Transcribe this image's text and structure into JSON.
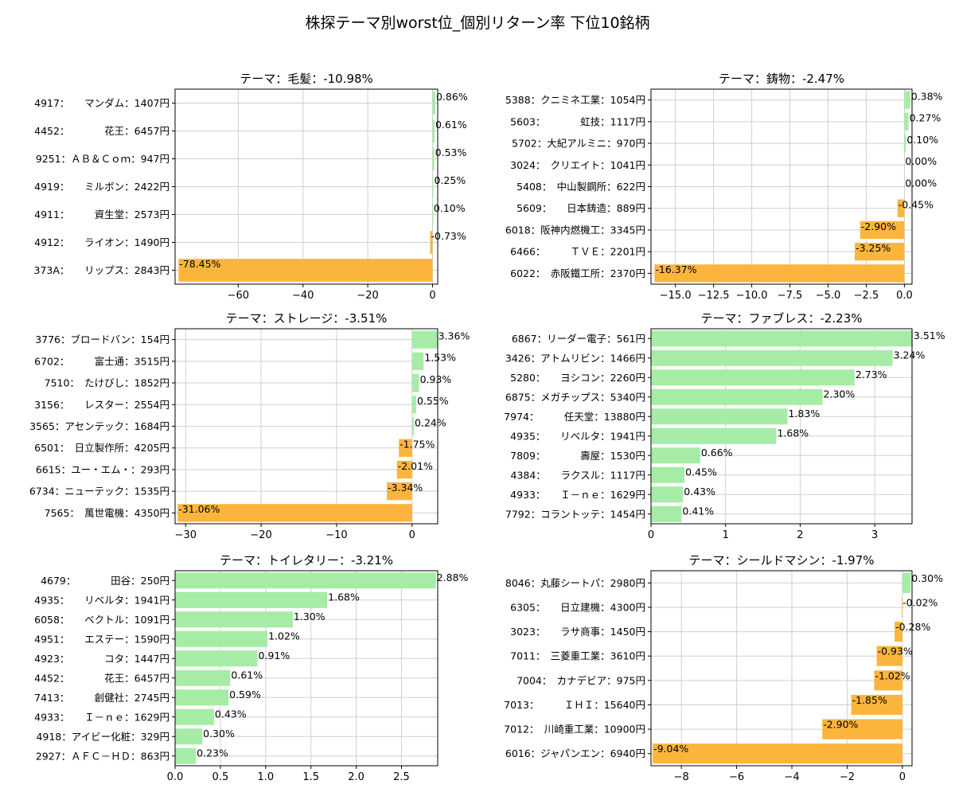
{
  "figure_title": "株探テーマ別worst位_個別リターン率 下位10銘柄",
  "colors": {
    "positive": "#a6eca6",
    "negative": "#fbb53c",
    "grid": "#cfcfcf",
    "axis": "#000000"
  },
  "chart_data": [
    {
      "type": "bar",
      "orientation": "horizontal",
      "title": "テーマ：毛髪：-10.98%",
      "categories": [
        "4917：　　マンダム：1407円",
        "4452：　　　　花王：6457円",
        "9251：ＡＢ＆Ｃｏｍ：947円",
        "4919：　　ミルボン：2422円",
        "4911：　　　資生堂：2573円",
        "4912：　　ライオン：1490円",
        "373A：　　リップス：2843円"
      ],
      "values": [
        0.86,
        0.61,
        0.53,
        0.25,
        0.1,
        -0.73,
        -78.45
      ],
      "value_labels": [
        "0.86%",
        "0.61%",
        "0.53%",
        "0.25%",
        "0.10%",
        "-0.73%",
        "-78.45%"
      ],
      "xlim": [
        -79.5,
        1.6
      ],
      "xticks": [
        -60,
        -40,
        -20,
        0
      ],
      "xtick_labels": [
        "−60",
        "−40",
        "−20",
        "0"
      ],
      "grid": true
    },
    {
      "type": "bar",
      "orientation": "horizontal",
      "title": "テーマ：鋳物：-2.47%",
      "categories": [
        "5388：クニミネ工業：1054円",
        "5603：　　　　虹技：1117円",
        "5702：大紀アルミニ：970円",
        "3024：　クリエイト：1041円",
        "5408：　中山製鋼所：622円",
        "5609：　　日本鋳造：889円",
        "6018：阪神内燃機工：3345円",
        "6466：　　　ＴＶＥ：2201円",
        "6022：　赤阪鐵工所：2370円"
      ],
      "values": [
        0.38,
        0.27,
        0.1,
        0.0,
        0.0,
        -0.45,
        -2.9,
        -3.25,
        -16.37
      ],
      "value_labels": [
        "0.38%",
        "0.27%",
        "0.10%",
        "0.00%",
        "0.00%",
        "-0.45%",
        "-2.90%",
        "-3.25%",
        "-16.37%"
      ],
      "xlim": [
        -16.6,
        0.5
      ],
      "xticks": [
        -15.0,
        -12.5,
        -10.0,
        -7.5,
        -5.0,
        -2.5,
        0.0
      ],
      "xtick_labels": [
        "−15.0",
        "−12.5",
        "−10.0",
        "−7.5",
        "−5.0",
        "−2.5",
        "0.0"
      ],
      "grid": true
    },
    {
      "type": "bar",
      "orientation": "horizontal",
      "title": "テーマ：ストレージ：-3.51%",
      "categories": [
        "3776：ブロードバン：154円",
        "6702：　　　富士通：3515円",
        "7510：　たけびし：1852円",
        "3156：　　レスター：2554円",
        "3565：アセンテック：1684円",
        "6501：　日立製作所：4205円",
        "6615：ユー・エム・：293円",
        "6734：ニューテック：1535円",
        "7565：　萬世電機：4350円"
      ],
      "values": [
        3.36,
        1.53,
        0.93,
        0.55,
        0.24,
        -1.75,
        -2.01,
        -3.34,
        -31.06
      ],
      "value_labels": [
        "3.36%",
        "1.53%",
        "0.93%",
        "0.55%",
        "0.24%",
        "-1.75%",
        "-2.01%",
        "-3.34%",
        "-31.06%"
      ],
      "xlim": [
        -31.4,
        3.4
      ],
      "xticks": [
        -30,
        -20,
        -10,
        0
      ],
      "xtick_labels": [
        "−30",
        "−20",
        "−10",
        "0"
      ],
      "grid": true
    },
    {
      "type": "bar",
      "orientation": "horizontal",
      "title": "テーマ：ファブレス：-2.23%",
      "categories": [
        "6867：リーダー電子：561円",
        "3426：アトムリビン：1466円",
        "5280：　　ヨシコン：2260円",
        "6875：メガチップス：5340円",
        "7974：　　　任天堂：13880円",
        "4935：　　リベルタ：1941円",
        "7809：　　　　壽屋：1530円",
        "4384：　　ラクスル：1117円",
        "4933：　　Ｉ－ｎｅ：1629円",
        "7792：コラントッテ：1454円"
      ],
      "values": [
        3.51,
        3.24,
        2.73,
        2.3,
        1.83,
        1.68,
        0.66,
        0.45,
        0.43,
        0.41
      ],
      "value_labels": [
        "3.51%",
        "3.24%",
        "2.73%",
        "2.30%",
        "1.83%",
        "1.68%",
        "0.66%",
        "0.45%",
        "0.43%",
        "0.41%"
      ],
      "xlim": [
        0,
        3.5
      ],
      "xticks": [
        0,
        1,
        2,
        3
      ],
      "xtick_labels": [
        "0",
        "1",
        "2",
        "3"
      ],
      "grid": true
    },
    {
      "type": "bar",
      "orientation": "horizontal",
      "title": "テーマ：トイレタリー：-3.21%",
      "categories": [
        "4679：　　　　田谷：250円",
        "4935：　　リベルタ：1941円",
        "6058：　　ベクトル：1091円",
        "4951：　　エステー：1590円",
        "4923：　　　　コタ：1447円",
        "4452：　　　　花王：6457円",
        "7413：　　　創健社：2745円",
        "4933：　　Ｉ－ｎｅ：1629円",
        "4918：アイビー化粧：329円",
        "2927：ＡＦＣ－ＨＤ：863円"
      ],
      "values": [
        2.88,
        1.68,
        1.3,
        1.02,
        0.91,
        0.61,
        0.59,
        0.43,
        0.3,
        0.23
      ],
      "value_labels": [
        "2.88%",
        "1.68%",
        "1.30%",
        "1.02%",
        "0.91%",
        "0.61%",
        "0.59%",
        "0.43%",
        "0.30%",
        "0.23%"
      ],
      "xlim": [
        0,
        2.9
      ],
      "xticks": [
        0.0,
        0.5,
        1.0,
        1.5,
        2.0,
        2.5
      ],
      "xtick_labels": [
        "0.0",
        "0.5",
        "1.0",
        "1.5",
        "2.0",
        "2.5"
      ],
      "grid": true
    },
    {
      "type": "bar",
      "orientation": "horizontal",
      "title": "テーマ：シールドマシン：-1.97%",
      "categories": [
        "8046：丸藤シートパ：2980円",
        "6305：　　日立建機：4300円",
        "3023：　　ラサ商事：1450円",
        "7011：　三菱重工業：3610円",
        "7004：　カナデビア：975円",
        "7013：　　　ＩＨＩ：15640円",
        "7012：　川崎重工業：10900円",
        "6016：ジャパンエン：6940円"
      ],
      "values": [
        0.3,
        -0.02,
        -0.28,
        -0.93,
        -1.02,
        -1.85,
        -2.9,
        -9.04
      ],
      "value_labels": [
        "0.30%",
        "-0.02%",
        "-0.28%",
        "-0.93%",
        "-1.02%",
        "-1.85%",
        "-2.90%",
        "-9.04%"
      ],
      "xlim": [
        -9.1,
        0.35
      ],
      "xticks": [
        -8,
        -6,
        -4,
        -2,
        0
      ],
      "xtick_labels": [
        "−8",
        "−6",
        "−4",
        "−2",
        "0"
      ],
      "grid": true
    }
  ]
}
